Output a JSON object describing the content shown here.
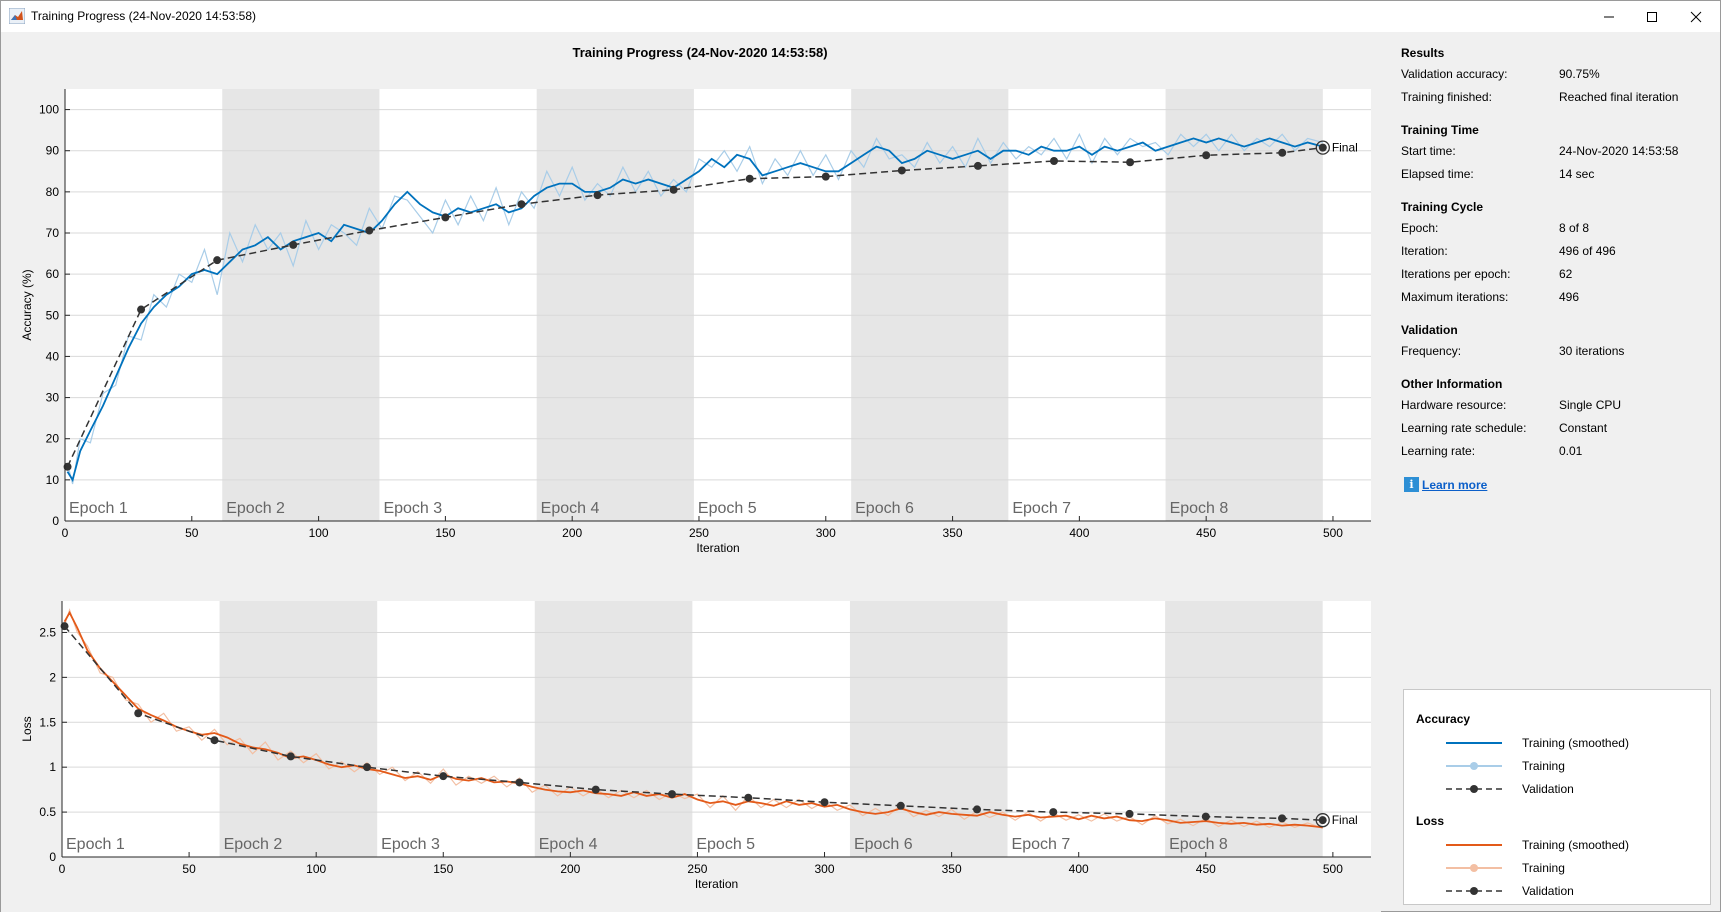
{
  "window": {
    "title": "Training Progress (24-Nov-2020 14:53:58)"
  },
  "figure_title": "Training Progress (24-Nov-2020 14:53:58)",
  "colors": {
    "accuracy_smoothed": "#0072bd",
    "accuracy_raw": "#a9cde8",
    "loss_smoothed": "#e35a19",
    "loss_raw": "#f3bfa3",
    "validation": "#333333",
    "epoch_shade": "#e6e6e6"
  },
  "epochs": [
    "Epoch 1",
    "Epoch 2",
    "Epoch 3",
    "Epoch 4",
    "Epoch 5",
    "Epoch 6",
    "Epoch 7",
    "Epoch 8"
  ],
  "final_label": "Final",
  "chart_data": [
    {
      "type": "line",
      "name": "accuracy",
      "xlabel": "Iteration",
      "ylabel": "Accuracy (%)",
      "xlim": [
        0,
        515
      ],
      "ylim": [
        0,
        105
      ],
      "xticks": [
        0,
        50,
        100,
        150,
        200,
        250,
        300,
        350,
        400,
        450,
        500
      ],
      "yticks": [
        0,
        10,
        20,
        30,
        40,
        50,
        60,
        70,
        80,
        90,
        100
      ],
      "epoch_boundaries": [
        0,
        62,
        124,
        186,
        248,
        310,
        372,
        434,
        496
      ],
      "series": [
        {
          "name": "Training (smoothed)",
          "x": [
            1,
            3,
            6,
            10,
            15,
            20,
            25,
            30,
            35,
            40,
            45,
            50,
            55,
            60,
            65,
            70,
            75,
            80,
            85,
            90,
            95,
            100,
            105,
            110,
            115,
            120,
            125,
            130,
            135,
            140,
            145,
            150,
            155,
            160,
            165,
            170,
            175,
            180,
            185,
            190,
            195,
            200,
            205,
            210,
            215,
            220,
            225,
            230,
            235,
            240,
            245,
            250,
            255,
            260,
            265,
            270,
            275,
            280,
            285,
            290,
            295,
            300,
            305,
            310,
            315,
            320,
            325,
            330,
            335,
            340,
            345,
            350,
            355,
            360,
            365,
            370,
            375,
            380,
            385,
            390,
            395,
            400,
            405,
            410,
            415,
            420,
            425,
            430,
            435,
            440,
            445,
            450,
            455,
            460,
            465,
            470,
            475,
            480,
            485,
            490,
            496
          ],
          "y": [
            12,
            10,
            17,
            22,
            28,
            35,
            42,
            48,
            52,
            55,
            57,
            60,
            61,
            60,
            63,
            66,
            67,
            69,
            66,
            68,
            69,
            70,
            68,
            72,
            71,
            70,
            73,
            77,
            80,
            77,
            75,
            74,
            76,
            75,
            76,
            77,
            75,
            76,
            79,
            81,
            82,
            82,
            80,
            80,
            81,
            83,
            82,
            83,
            82,
            81,
            83,
            85,
            88,
            86,
            89,
            88,
            84,
            85,
            86,
            87,
            86,
            85,
            85,
            87,
            89,
            91,
            90,
            87,
            88,
            90,
            89,
            88,
            89,
            90,
            88,
            90,
            90,
            89,
            91,
            90,
            90,
            91,
            89,
            91,
            90,
            91,
            92,
            90,
            91,
            92,
            93,
            92,
            93,
            92,
            91,
            92,
            93,
            92,
            91,
            92,
            91
          ]
        },
        {
          "name": "Training",
          "x": [
            1,
            3,
            6,
            10,
            15,
            20,
            25,
            30,
            35,
            40,
            45,
            50,
            55,
            60,
            65,
            70,
            75,
            80,
            85,
            90,
            95,
            100,
            105,
            110,
            115,
            120,
            125,
            130,
            135,
            140,
            145,
            150,
            155,
            160,
            165,
            170,
            175,
            180,
            185,
            190,
            195,
            200,
            205,
            210,
            215,
            220,
            225,
            230,
            235,
            240,
            245,
            250,
            255,
            260,
            265,
            270,
            275,
            280,
            285,
            290,
            295,
            300,
            305,
            310,
            315,
            320,
            325,
            330,
            335,
            340,
            345,
            350,
            355,
            360,
            365,
            370,
            375,
            380,
            385,
            390,
            395,
            400,
            405,
            410,
            415,
            420,
            425,
            430,
            435,
            440,
            445,
            450,
            455,
            460,
            465,
            470,
            475,
            480,
            485,
            490,
            496
          ],
          "y": [
            14,
            9,
            20,
            19,
            31,
            33,
            45,
            44,
            55,
            52,
            60,
            58,
            66,
            55,
            70,
            63,
            72,
            66,
            70,
            62,
            73,
            66,
            72,
            70,
            67,
            76,
            71,
            79,
            78,
            74,
            70,
            78,
            72,
            79,
            73,
            81,
            72,
            80,
            76,
            85,
            79,
            86,
            78,
            82,
            79,
            86,
            80,
            85,
            79,
            83,
            80,
            88,
            86,
            90,
            85,
            91,
            82,
            88,
            84,
            90,
            84,
            89,
            83,
            90,
            86,
            93,
            88,
            89,
            86,
            92,
            87,
            91,
            86,
            93,
            87,
            92,
            88,
            91,
            89,
            93,
            88,
            94,
            87,
            93,
            89,
            93,
            91,
            92,
            89,
            94,
            91,
            94,
            90,
            94,
            90,
            93,
            91,
            94,
            90,
            93,
            92
          ]
        },
        {
          "name": "Validation",
          "x": [
            1,
            30,
            60,
            90,
            120,
            150,
            180,
            210,
            240,
            270,
            300,
            330,
            360,
            390,
            420,
            450,
            480,
            496
          ],
          "y": [
            13.2,
            51.4,
            63.4,
            67.1,
            70.6,
            73.8,
            77.0,
            79.2,
            80.5,
            83.2,
            83.7,
            85.2,
            86.3,
            87.5,
            87.2,
            88.9,
            89.5,
            90.75
          ]
        }
      ]
    },
    {
      "type": "line",
      "name": "loss",
      "xlabel": "Iteration",
      "ylabel": "Loss",
      "xlim": [
        0,
        515
      ],
      "ylim": [
        0,
        2.85
      ],
      "xticks": [
        0,
        50,
        100,
        150,
        200,
        250,
        300,
        350,
        400,
        450,
        500
      ],
      "yticks": [
        0,
        0.5,
        1,
        1.5,
        2,
        2.5
      ],
      "ytick_labels": [
        "0",
        "0.5",
        "1",
        "1.5",
        "2",
        "2.5"
      ],
      "epoch_boundaries": [
        0,
        62,
        124,
        186,
        248,
        310,
        372,
        434,
        496
      ],
      "series": [
        {
          "name": "Training (smoothed)",
          "x": [
            1,
            3,
            6,
            10,
            15,
            20,
            25,
            30,
            35,
            40,
            45,
            50,
            55,
            60,
            65,
            70,
            75,
            80,
            85,
            90,
            95,
            100,
            105,
            110,
            115,
            120,
            125,
            130,
            135,
            140,
            145,
            150,
            155,
            160,
            165,
            170,
            175,
            180,
            185,
            190,
            195,
            200,
            205,
            210,
            215,
            220,
            225,
            230,
            235,
            240,
            245,
            250,
            255,
            260,
            265,
            270,
            275,
            280,
            285,
            290,
            295,
            300,
            305,
            310,
            315,
            320,
            325,
            330,
            335,
            340,
            345,
            350,
            355,
            360,
            365,
            370,
            375,
            380,
            385,
            390,
            395,
            400,
            405,
            410,
            415,
            420,
            425,
            430,
            435,
            440,
            445,
            450,
            455,
            460,
            465,
            470,
            475,
            480,
            485,
            490,
            496
          ],
          "y": [
            2.62,
            2.72,
            2.55,
            2.3,
            2.1,
            1.95,
            1.8,
            1.65,
            1.58,
            1.52,
            1.45,
            1.4,
            1.36,
            1.38,
            1.33,
            1.26,
            1.22,
            1.2,
            1.16,
            1.1,
            1.12,
            1.08,
            1.03,
            1.0,
            1.02,
            0.98,
            0.96,
            0.92,
            0.88,
            0.9,
            0.86,
            0.92,
            0.87,
            0.85,
            0.88,
            0.83,
            0.84,
            0.82,
            0.78,
            0.75,
            0.73,
            0.72,
            0.74,
            0.71,
            0.7,
            0.68,
            0.72,
            0.68,
            0.7,
            0.66,
            0.7,
            0.64,
            0.6,
            0.62,
            0.58,
            0.62,
            0.6,
            0.57,
            0.62,
            0.58,
            0.6,
            0.56,
            0.58,
            0.53,
            0.5,
            0.48,
            0.5,
            0.54,
            0.5,
            0.47,
            0.5,
            0.48,
            0.47,
            0.46,
            0.5,
            0.47,
            0.45,
            0.47,
            0.44,
            0.45,
            0.46,
            0.42,
            0.46,
            0.43,
            0.45,
            0.41,
            0.4,
            0.43,
            0.41,
            0.38,
            0.39,
            0.4,
            0.38,
            0.37,
            0.38,
            0.36,
            0.37,
            0.35,
            0.36,
            0.35,
            0.33
          ]
        },
        {
          "name": "Training",
          "x": [
            1,
            3,
            6,
            10,
            15,
            20,
            25,
            30,
            35,
            40,
            45,
            50,
            55,
            60,
            65,
            70,
            75,
            80,
            85,
            90,
            95,
            100,
            105,
            110,
            115,
            120,
            125,
            130,
            135,
            140,
            145,
            150,
            155,
            160,
            165,
            170,
            175,
            180,
            185,
            190,
            195,
            200,
            205,
            210,
            215,
            220,
            225,
            230,
            235,
            240,
            245,
            250,
            255,
            260,
            265,
            270,
            275,
            280,
            285,
            290,
            295,
            300,
            305,
            310,
            315,
            320,
            325,
            330,
            335,
            340,
            345,
            350,
            355,
            360,
            365,
            370,
            375,
            380,
            385,
            390,
            395,
            400,
            405,
            410,
            415,
            420,
            425,
            430,
            435,
            440,
            445,
            450,
            455,
            460,
            465,
            470,
            475,
            480,
            485,
            490,
            496
          ],
          "y": [
            2.58,
            2.75,
            2.5,
            2.35,
            2.05,
            2.0,
            1.75,
            1.7,
            1.5,
            1.6,
            1.4,
            1.45,
            1.3,
            1.42,
            1.25,
            1.32,
            1.15,
            1.28,
            1.08,
            1.18,
            1.05,
            1.15,
            0.98,
            1.06,
            0.95,
            1.05,
            0.92,
            1.0,
            0.85,
            0.95,
            0.82,
            0.98,
            0.8,
            0.9,
            0.82,
            0.9,
            0.78,
            0.88,
            0.72,
            0.8,
            0.68,
            0.78,
            0.68,
            0.76,
            0.66,
            0.74,
            0.66,
            0.74,
            0.64,
            0.72,
            0.65,
            0.7,
            0.55,
            0.68,
            0.52,
            0.68,
            0.55,
            0.64,
            0.55,
            0.64,
            0.54,
            0.62,
            0.52,
            0.58,
            0.46,
            0.54,
            0.46,
            0.58,
            0.45,
            0.52,
            0.45,
            0.53,
            0.42,
            0.51,
            0.44,
            0.5,
            0.41,
            0.5,
            0.4,
            0.49,
            0.41,
            0.47,
            0.4,
            0.48,
            0.4,
            0.45,
            0.36,
            0.46,
            0.37,
            0.42,
            0.35,
            0.43,
            0.34,
            0.41,
            0.34,
            0.4,
            0.33,
            0.39,
            0.33,
            0.38,
            0.32
          ]
        },
        {
          "name": "Validation",
          "x": [
            1,
            30,
            60,
            90,
            120,
            150,
            180,
            210,
            240,
            270,
            300,
            330,
            360,
            390,
            420,
            450,
            480,
            496
          ],
          "y": [
            2.57,
            1.6,
            1.3,
            1.12,
            1.0,
            0.9,
            0.83,
            0.75,
            0.7,
            0.66,
            0.61,
            0.57,
            0.53,
            0.5,
            0.48,
            0.45,
            0.43,
            0.41
          ]
        }
      ]
    }
  ],
  "info": {
    "sections": [
      {
        "heading": "Results",
        "rows": [
          {
            "label": "Validation accuracy:",
            "value": "90.75%"
          },
          {
            "label": "Training finished:",
            "value": "Reached final iteration"
          }
        ]
      },
      {
        "heading": "Training Time",
        "rows": [
          {
            "label": "Start time:",
            "value": "24-Nov-2020 14:53:58"
          },
          {
            "label": "Elapsed time:",
            "value": "14 sec"
          }
        ]
      },
      {
        "heading": "Training Cycle",
        "rows": [
          {
            "label": "Epoch:",
            "value": "8 of 8"
          },
          {
            "label": "Iteration:",
            "value": "496 of 496"
          },
          {
            "label": "Iterations per epoch:",
            "value": "62"
          },
          {
            "label": "Maximum iterations:",
            "value": "496"
          }
        ]
      },
      {
        "heading": "Validation",
        "rows": [
          {
            "label": "Frequency:",
            "value": "30 iterations"
          }
        ]
      },
      {
        "heading": "Other Information",
        "rows": [
          {
            "label": "Hardware resource:",
            "value": "Single CPU"
          },
          {
            "label": "Learning rate schedule:",
            "value": "Constant"
          },
          {
            "label": "Learning rate:",
            "value": "0.01"
          }
        ]
      }
    ],
    "learn_more": "Learn more",
    "learn_icon": "info-icon"
  },
  "legend": {
    "accuracy_heading": "Accuracy",
    "loss_heading": "Loss",
    "entries": {
      "smoothed": "Training (smoothed)",
      "training": "Training",
      "validation": "Validation"
    }
  }
}
